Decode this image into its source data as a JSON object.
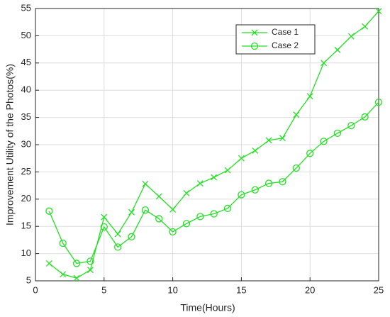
{
  "chart_data": {
    "type": "line",
    "xlabel": "Time(Hours)",
    "ylabel": "Improvement Utility of the Photos(%)",
    "x": [
      1,
      2,
      3,
      4,
      5,
      6,
      7,
      8,
      9,
      10,
      11,
      12,
      13,
      14,
      15,
      16,
      17,
      18,
      19,
      20,
      21,
      22,
      23,
      24,
      25
    ],
    "series": [
      {
        "name": "Case 1",
        "color": "#22e022",
        "marker": "x",
        "values": [
          8.2,
          6.2,
          5.5,
          7.0,
          16.7,
          13.6,
          17.6,
          22.8,
          20.5,
          18.1,
          21.1,
          22.9,
          24.0,
          25.3,
          27.5,
          28.9,
          30.8,
          31.2,
          35.5,
          38.9,
          45.0,
          47.4,
          49.9,
          51.7,
          54.5
        ]
      },
      {
        "name": "Case 2",
        "color": "#22e022",
        "marker": "o",
        "values": [
          17.8,
          11.9,
          8.2,
          8.6,
          14.9,
          11.2,
          13.1,
          18.0,
          16.4,
          14.0,
          15.5,
          16.8,
          17.3,
          18.3,
          20.8,
          21.7,
          22.9,
          23.2,
          25.7,
          28.4,
          30.6,
          32.1,
          33.5,
          35.1,
          37.8
        ]
      }
    ],
    "xlim": [
      0,
      25
    ],
    "xticks": [
      0,
      5,
      10,
      15,
      20,
      25
    ],
    "ylim": [
      5,
      55
    ],
    "yticks": [
      5,
      10,
      15,
      20,
      25,
      30,
      35,
      40,
      45,
      50,
      55
    ],
    "grid": true,
    "legend": "top-right"
  }
}
